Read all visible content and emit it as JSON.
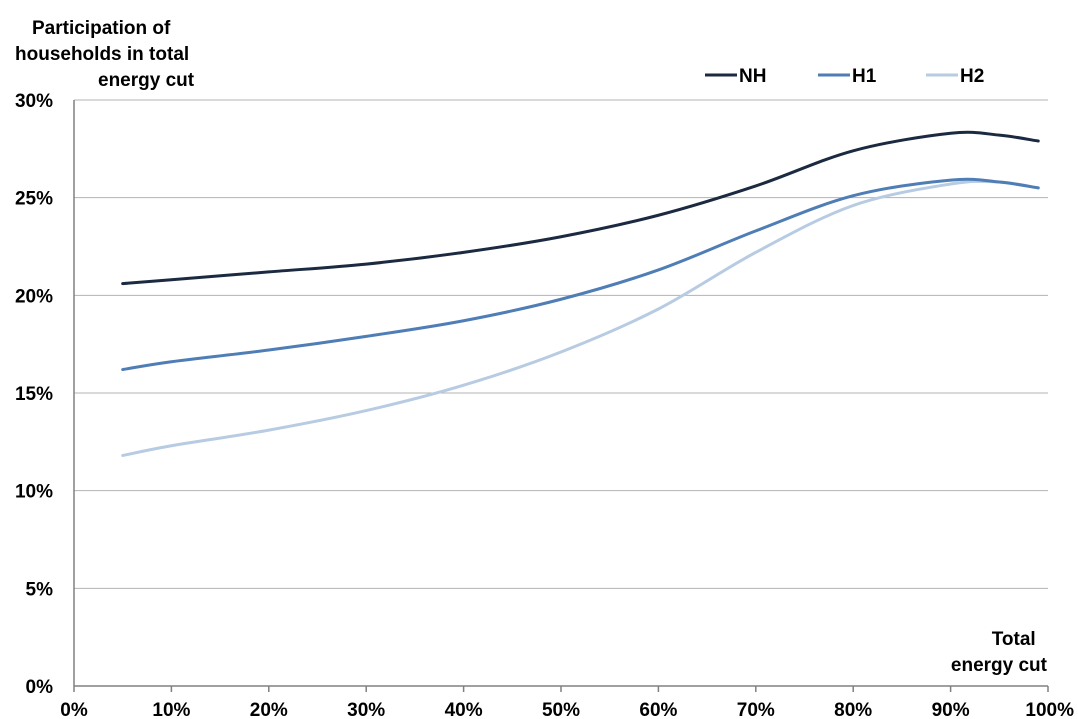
{
  "chart_data": {
    "type": "line",
    "ylabel_lines": [
      "Participation of",
      "households in total",
      "energy cut"
    ],
    "xlabel_lines": [
      "Total",
      "energy cut"
    ],
    "x_ticks": [
      "0%",
      "10%",
      "20%",
      "30%",
      "40%",
      "50%",
      "60%",
      "70%",
      "80%",
      "90%",
      "100%"
    ],
    "y_ticks": [
      "0%",
      "5%",
      "10%",
      "15%",
      "20%",
      "25%",
      "30%"
    ],
    "xlim": [
      0,
      100
    ],
    "ylim": [
      0,
      30
    ],
    "grid": "horizontal",
    "legend_position": "top-right",
    "x": [
      5,
      10,
      20,
      30,
      40,
      50,
      60,
      70,
      80,
      90,
      95,
      99
    ],
    "series": [
      {
        "name": "NH",
        "color": "#1b2a41",
        "values": [
          20.6,
          20.8,
          21.2,
          21.6,
          22.2,
          23.0,
          24.1,
          25.6,
          27.4,
          28.3,
          28.2,
          27.9
        ]
      },
      {
        "name": "H1",
        "color": "#4f7db5",
        "values": [
          16.2,
          16.6,
          17.2,
          17.9,
          18.7,
          19.8,
          21.3,
          23.3,
          25.1,
          25.9,
          25.8,
          25.5
        ]
      },
      {
        "name": "H2",
        "color": "#b7cbe2",
        "values": [
          11.8,
          12.3,
          13.1,
          14.1,
          15.4,
          17.1,
          19.3,
          22.2,
          24.6,
          25.7,
          25.8,
          25.5
        ]
      }
    ]
  }
}
